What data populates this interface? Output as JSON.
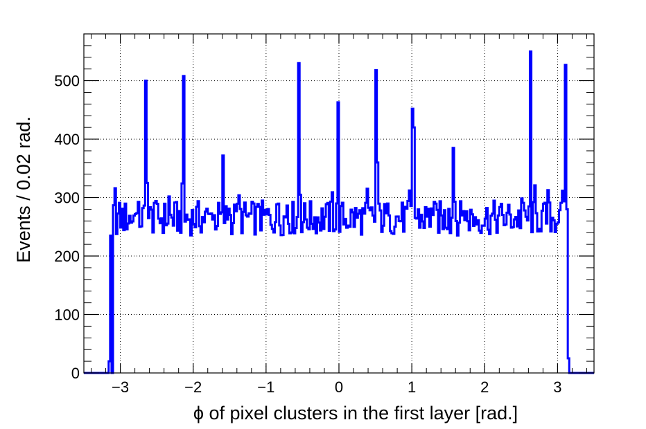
{
  "chart_data": {
    "type": "histogram",
    "xlabel": "ϕ of pixel clusters in the first layer [rad.]",
    "ylabel": "Events / 0.02 rad.",
    "xlim": [
      -3.5,
      3.5
    ],
    "ylim": [
      0,
      580
    ],
    "grid": true,
    "line_color": "#0000ff",
    "x_ticks": [
      -3,
      -2,
      -1,
      0,
      1,
      2,
      3
    ],
    "x_tick_labels": [
      "−3",
      "−2",
      "−1",
      "0",
      "1",
      "2",
      "3"
    ],
    "y_ticks": [
      0,
      100,
      200,
      300,
      400,
      500
    ],
    "y_tick_labels": [
      "0",
      "100",
      "200",
      "300",
      "400",
      "500"
    ],
    "bin_width": 0.02,
    "baseline_range": [
      -3.1,
      3.1
    ],
    "baseline_level": 265,
    "edge_bins": [
      {
        "x": -3.14,
        "y": 20
      },
      {
        "x": -3.12,
        "y": 235
      },
      {
        "x": 3.12,
        "y": 280
      },
      {
        "x": 3.14,
        "y": 25
      }
    ],
    "spikes": [
      {
        "x": -2.64,
        "y": 500
      },
      {
        "x": -2.62,
        "y": 325
      },
      {
        "x": -2.12,
        "y": 508
      },
      {
        "x": -1.58,
        "y": 372
      },
      {
        "x": -0.54,
        "y": 530
      },
      {
        "x": -0.52,
        "y": 305
      },
      {
        "x": 0.0,
        "y": 463
      },
      {
        "x": 0.52,
        "y": 518
      },
      {
        "x": 0.54,
        "y": 360
      },
      {
        "x": 1.02,
        "y": 452
      },
      {
        "x": 1.04,
        "y": 420
      },
      {
        "x": 1.58,
        "y": 385
      },
      {
        "x": 2.62,
        "y": 550
      },
      {
        "x": 3.1,
        "y": 527
      }
    ]
  }
}
